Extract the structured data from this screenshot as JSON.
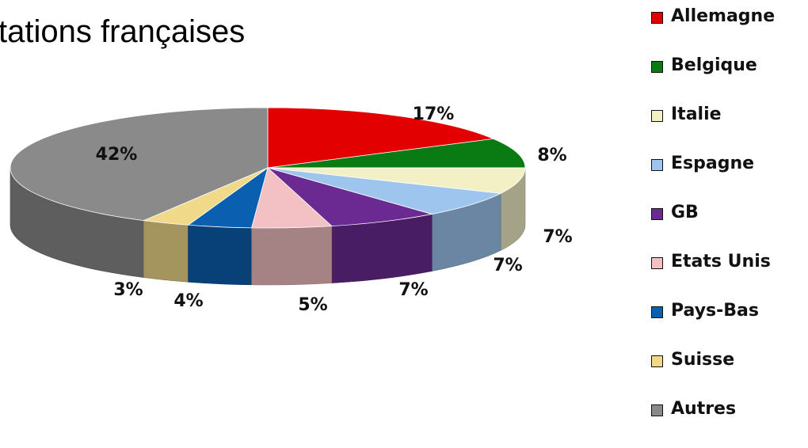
{
  "title": "tations françaises",
  "chart_data": {
    "type": "pie",
    "style": "3d",
    "unit": "%",
    "categories": [
      "Allemagne",
      "Belgique",
      "Italie",
      "Espagne",
      "GB",
      "Etats Unis",
      "Pays-Bas",
      "Suisse",
      "Autres"
    ],
    "values": [
      17,
      8,
      7,
      7,
      7,
      5,
      4,
      3,
      42
    ],
    "labels": [
      "17%",
      "8%",
      "7%",
      "7%",
      "7%",
      "5%",
      "4%",
      "3%",
      "42%"
    ],
    "colors": [
      "#e30000",
      "#0a7a12",
      "#f3f0c6",
      "#9ec5ee",
      "#6a2a92",
      "#f3c0c4",
      "#0b5fb0",
      "#f1d98a",
      "#8a8a8a"
    ],
    "legend_position": "right"
  }
}
